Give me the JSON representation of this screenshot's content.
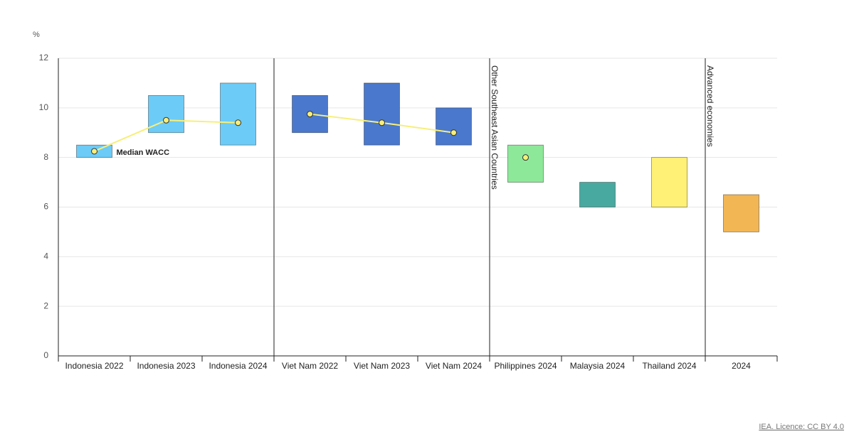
{
  "chart_data": [
    {
      "type": "range_bar",
      "y_unit": "%",
      "ylim": [
        0,
        12
      ],
      "yticks": [
        0,
        2,
        4,
        6,
        8,
        10,
        12
      ],
      "grid": true,
      "median_label": "Median WACC",
      "median_color": "#f7ef7a",
      "categories": [
        "Indonesia 2022",
        "Indonesia 2023",
        "Indonesia 2024"
      ],
      "low": [
        8,
        9,
        8.5
      ],
      "high": [
        8.5,
        10.5,
        11
      ],
      "median": [
        8.25,
        9.5,
        9.4
      ],
      "colors": [
        "#6ccbf7",
        "#6ccbf7",
        "#6ccbf7"
      ]
    },
    {
      "type": "range_bar",
      "categories": [
        "Viet Nam 2022",
        "Viet Nam 2023",
        "Viet Nam 2024"
      ],
      "low": [
        9,
        8.5,
        8.5
      ],
      "high": [
        10.5,
        11,
        10
      ],
      "median": [
        9.75,
        9.4,
        9
      ],
      "colors": [
        "#4a78cc",
        "#4a78cc",
        "#4a78cc"
      ]
    },
    {
      "type": "range_bar",
      "group_label": "Other Southeast Asian Countries",
      "categories": [
        "Philippines 2024",
        "Malaysia 2024",
        "Thailand 2024"
      ],
      "low": [
        7,
        6,
        6
      ],
      "high": [
        8.5,
        7,
        8
      ],
      "median": [
        8,
        null,
        null
      ],
      "colors": [
        "#8ee89a",
        "#48a9a0",
        "#fff176"
      ]
    },
    {
      "type": "range_bar",
      "group_label": "Advanced economies",
      "categories": [
        "2024"
      ],
      "low": [
        5
      ],
      "high": [
        6.5
      ],
      "colors": [
        "#f2b654"
      ]
    }
  ],
  "source": "IEA. Licence: CC BY 4.0"
}
